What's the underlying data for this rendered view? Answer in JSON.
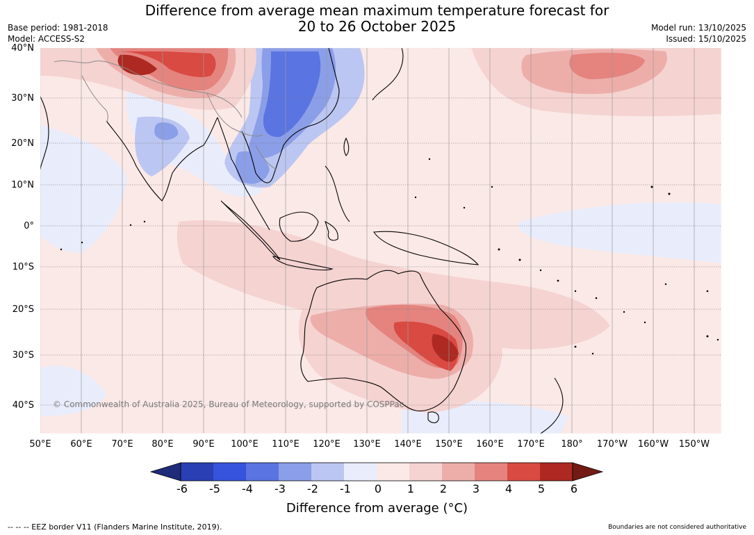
{
  "header": {
    "title_line1": "Difference from average mean maximum temperature forecast for",
    "title_line2": "20 to 26 October 2025",
    "base_period": "Base period: 1981-2018",
    "model": "Model: ACCESS-S2",
    "model_run": "Model run: 13/10/2025",
    "issued": "Issued: 15/10/2025"
  },
  "map": {
    "latitude_labels": [
      "40°N",
      "30°N",
      "20°N",
      "10°N",
      "0°",
      "10°S",
      "20°S",
      "30°S",
      "40°S"
    ],
    "longitude_labels": [
      "50°E",
      "60°E",
      "70°E",
      "80°E",
      "90°E",
      "100°E",
      "110°E",
      "120°E",
      "130°E",
      "140°E",
      "150°E",
      "160°E",
      "170°E",
      "180°",
      "170°W",
      "160°W",
      "150°W"
    ],
    "copyright": "© Commonwealth of Australia 2025, Bureau of Meteorology, supported by COSPPac"
  },
  "colorbar": {
    "ticks": [
      "-6",
      "-5",
      "-4",
      "-3",
      "-2",
      "-1",
      "0",
      "1",
      "2",
      "3",
      "4",
      "5",
      "6"
    ],
    "colors": [
      "#1f2c7a",
      "#2a3fb3",
      "#3553dc",
      "#5a74e2",
      "#8b9ee8",
      "#bcc6f2",
      "#e9ecfb",
      "#fbe9e7",
      "#f5d3d1",
      "#edaeaa",
      "#e5837e",
      "#d94a42",
      "#ad2921",
      "#741a15"
    ],
    "title": "Difference from average (°C)"
  },
  "footer": {
    "eez": "--  --  -- EEZ border V11 (Flanders Marine Institute, 2019).",
    "disclaimer": "Boundaries are not considered authoritative"
  }
}
